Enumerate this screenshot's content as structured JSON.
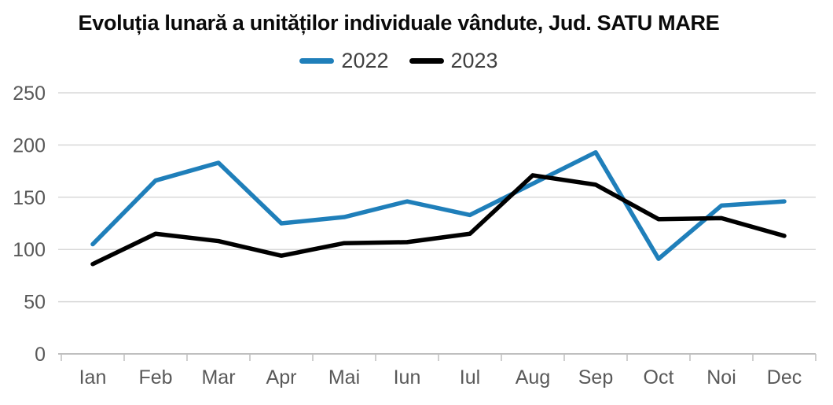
{
  "chart_data": {
    "type": "line",
    "title": "Evoluția lunară a unităților individuale vândute, Jud. SATU MARE",
    "categories": [
      "Ian",
      "Feb",
      "Mar",
      "Apr",
      "Mai",
      "Iun",
      "Iul",
      "Aug",
      "Sep",
      "Oct",
      "Noi",
      "Dec"
    ],
    "series": [
      {
        "name": "2022",
        "color": "#1f7fba",
        "values": [
          105,
          166,
          183,
          125,
          131,
          146,
          133,
          163,
          193,
          91,
          142,
          146
        ]
      },
      {
        "name": "2023",
        "color": "#000000",
        "values": [
          86,
          115,
          108,
          94,
          106,
          107,
          115,
          171,
          162,
          129,
          130,
          113
        ]
      }
    ],
    "ylim": [
      0,
      250
    ],
    "yticks": [
      0,
      50,
      100,
      150,
      200,
      250
    ],
    "grid": true,
    "legend_position": "top"
  },
  "style_colors": {
    "grid": "#d9d9d9",
    "axis": "#bfbfbf",
    "axis_label": "#595959",
    "legend_label": "#404040",
    "title": "#0a0a0a",
    "background": "#ffffff"
  }
}
